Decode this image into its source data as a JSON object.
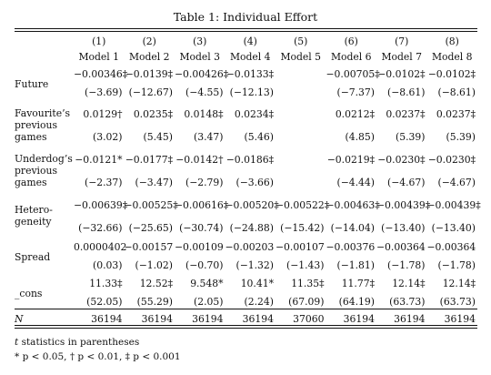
{
  "caption": "Table 1: Individual Effort",
  "columns": [
    {
      "num": "(1)",
      "name": "Model 1"
    },
    {
      "num": "(2)",
      "name": "Model 2"
    },
    {
      "num": "(3)",
      "name": "Model 3"
    },
    {
      "num": "(4)",
      "name": "Model 4"
    },
    {
      "num": "(5)",
      "name": "Model 5"
    },
    {
      "num": "(6)",
      "name": "Model 6"
    },
    {
      "num": "(7)",
      "name": "Model 7"
    },
    {
      "num": "(8)",
      "name": "Model 8"
    }
  ],
  "rows": [
    {
      "label": "Future",
      "coef": [
        "−0.00346‡",
        "−0.0139‡",
        "−0.00426‡",
        "−0.0133‡",
        "",
        "−0.00705‡",
        "−0.0102‡",
        "−0.0102‡"
      ],
      "tstat": [
        "(−3.69)",
        "(−12.67)",
        "(−4.55)",
        "(−12.13)",
        "",
        "(−7.37)",
        "(−8.61)",
        "(−8.61)"
      ]
    },
    {
      "label": "Favourite’s previous games",
      "coef": [
        "0.0129†",
        "0.0235‡",
        "0.0148‡",
        "0.0234‡",
        "",
        "0.0212‡",
        "0.0237‡",
        "0.0237‡"
      ],
      "tstat": [
        "(3.02)",
        "(5.45)",
        "(3.47)",
        "(5.46)",
        "",
        "(4.85)",
        "(5.39)",
        "(5.39)"
      ]
    },
    {
      "label": "Underdog’s previous games",
      "coef": [
        "−0.0121*",
        "−0.0177‡",
        "−0.0142†",
        "−0.0186‡",
        "",
        "−0.0219‡",
        "−0.0230‡",
        "−0.0230‡"
      ],
      "tstat": [
        "(−2.37)",
        "(−3.47)",
        "(−2.79)",
        "(−3.66)",
        "",
        "(−4.44)",
        "(−4.67)",
        "(−4.67)"
      ]
    },
    {
      "label": "Hetero-geneity",
      "coef": [
        "−0.00639‡",
        "−0.00525‡",
        "−0.00616‡",
        "−0.00520‡",
        "−0.00522‡",
        "−0.00463‡",
        "−0.00439‡",
        "−0.00439‡"
      ],
      "tstat": [
        "(−32.66)",
        "(−25.65)",
        "(−30.74)",
        "(−24.88)",
        "(−15.42)",
        "(−14.04)",
        "(−13.40)",
        "(−13.40)"
      ]
    },
    {
      "label": "Spread",
      "coef": [
        "0.0000402",
        "−0.00157",
        "−0.00109",
        "−0.00203",
        "−0.00107",
        "−0.00376",
        "−0.00364",
        "−0.00364"
      ],
      "tstat": [
        "(0.03)",
        "(−1.02)",
        "(−0.70)",
        "(−1.32)",
        "(−1.43)",
        "(−1.81)",
        "(−1.78)",
        "(−1.78)"
      ]
    },
    {
      "label": "_cons",
      "coef": [
        "11.33‡",
        "12.52‡",
        "9.548*",
        "10.41*",
        "11.35‡",
        "11.77‡",
        "12.14‡",
        "12.14‡"
      ],
      "tstat": [
        "(52.05)",
        "(55.29)",
        "(2.05)",
        "(2.24)",
        "(67.09)",
        "(64.19)",
        "(63.73)",
        "(63.73)"
      ]
    }
  ],
  "n_row": {
    "label": "N",
    "values": [
      "36194",
      "36194",
      "36194",
      "36194",
      "37060",
      "36194",
      "36194",
      "36194"
    ]
  },
  "notes": {
    "line1_var": "t",
    "line1_rest": " statistics in parentheses",
    "line2": "* p < 0.05,   † p < 0.01,   ‡ p < 0.001"
  }
}
